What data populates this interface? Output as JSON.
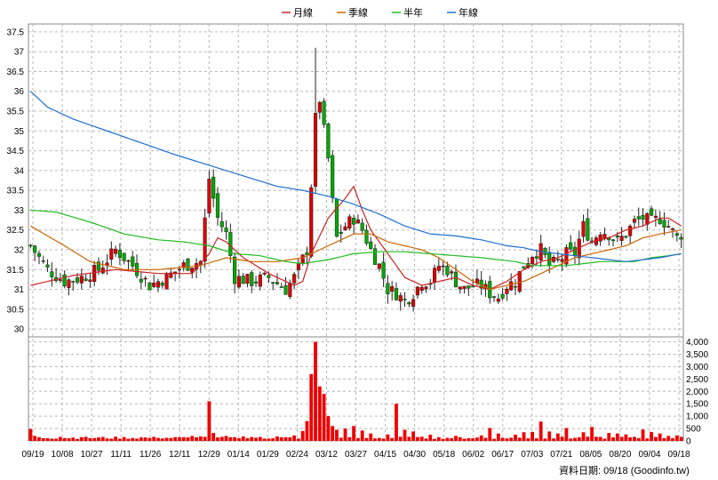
{
  "chart_data": [
    {
      "type": "candlestick",
      "legend": [
        {
          "name": "月線",
          "color": "#cc2222"
        },
        {
          "name": "季線",
          "color": "#cc6600"
        },
        {
          "name": "半年",
          "color": "#22bb22"
        },
        {
          "name": "年線",
          "color": "#1f6fd0"
        }
      ],
      "y_ticks": [
        "30",
        "30.5",
        "31",
        "31.5",
        "32",
        "32.5",
        "33",
        "33.5",
        "34",
        "34.5",
        "35",
        "35.5",
        "36",
        "36.5",
        "37",
        "37.5"
      ],
      "ylim": [
        29.8,
        37.7
      ],
      "x_ticks": [
        "09/19",
        "10/08",
        "10/27",
        "11/11",
        "11/26",
        "12/11",
        "12/29",
        "01/14",
        "01/29",
        "02/24",
        "03/12",
        "03/27",
        "04/15",
        "04/30",
        "05/18",
        "06/02",
        "06/17",
        "07/03",
        "07/21",
        "08/05",
        "08/20",
        "09/04",
        "09/18"
      ],
      "grid": true,
      "up_color": "#dd0000",
      "down_color": "#00aa00",
      "price_anchors": [
        [
          0,
          32.1
        ],
        [
          4,
          31.5
        ],
        [
          8,
          31.2
        ],
        [
          12,
          31.3
        ],
        [
          16,
          31.5
        ],
        [
          20,
          32.0
        ],
        [
          24,
          31.6
        ],
        [
          28,
          31.1
        ],
        [
          32,
          31.3
        ],
        [
          36,
          31.6
        ],
        [
          40,
          31.7
        ],
        [
          42,
          33.8
        ],
        [
          44,
          32.8
        ],
        [
          46,
          32.4
        ],
        [
          48,
          31.3
        ],
        [
          52,
          31.2
        ],
        [
          56,
          31.3
        ],
        [
          60,
          31.0
        ],
        [
          62,
          31.3
        ],
        [
          65,
          32.0
        ],
        [
          67,
          35.3
        ],
        [
          68,
          35.8
        ],
        [
          69,
          35.0
        ],
        [
          70,
          34.3
        ],
        [
          71,
          33.2
        ],
        [
          72,
          32.3
        ],
        [
          74,
          32.6
        ],
        [
          76,
          32.8
        ],
        [
          78,
          32.5
        ],
        [
          80,
          32.0
        ],
        [
          82,
          31.6
        ],
        [
          84,
          31.0
        ],
        [
          86,
          30.9
        ],
        [
          88,
          30.7
        ],
        [
          90,
          30.9
        ],
        [
          92,
          31.2
        ],
        [
          94,
          31.2
        ],
        [
          96,
          31.6
        ],
        [
          98,
          31.5
        ],
        [
          100,
          31.2
        ],
        [
          102,
          31.0
        ],
        [
          104,
          31.1
        ],
        [
          106,
          31.1
        ],
        [
          108,
          30.9
        ],
        [
          110,
          30.8
        ],
        [
          112,
          31.1
        ],
        [
          114,
          31.2
        ],
        [
          116,
          31.6
        ],
        [
          118,
          31.9
        ],
        [
          120,
          32.0
        ],
        [
          122,
          31.6
        ],
        [
          124,
          31.7
        ],
        [
          126,
          31.9
        ],
        [
          128,
          31.9
        ],
        [
          130,
          32.6
        ],
        [
          132,
          32.2
        ],
        [
          134,
          32.5
        ],
        [
          136,
          32.4
        ],
        [
          138,
          32.2
        ],
        [
          140,
          32.4
        ],
        [
          142,
          32.7
        ],
        [
          144,
          32.8
        ],
        [
          146,
          32.7
        ],
        [
          148,
          32.8
        ],
        [
          150,
          32.6
        ],
        [
          152,
          32.3
        ],
        [
          153,
          32.4
        ]
      ],
      "ma_anchors": {
        "月線": [
          [
            0,
            31.1
          ],
          [
            10,
            31.35
          ],
          [
            20,
            31.5
          ],
          [
            30,
            31.4
          ],
          [
            38,
            31.4
          ],
          [
            42,
            31.9
          ],
          [
            44,
            32.3
          ],
          [
            46,
            32.2
          ],
          [
            50,
            31.8
          ],
          [
            56,
            31.4
          ],
          [
            62,
            31.1
          ],
          [
            64,
            31.2
          ],
          [
            66,
            31.9
          ],
          [
            70,
            32.8
          ],
          [
            74,
            33.3
          ],
          [
            76,
            33.6
          ],
          [
            78,
            33.0
          ],
          [
            80,
            32.5
          ],
          [
            84,
            31.9
          ],
          [
            88,
            31.3
          ],
          [
            92,
            31.1
          ],
          [
            96,
            31.2
          ],
          [
            100,
            31.3
          ],
          [
            104,
            31.1
          ],
          [
            108,
            31.0
          ],
          [
            112,
            31.2
          ],
          [
            116,
            31.5
          ],
          [
            120,
            31.7
          ],
          [
            124,
            31.8
          ],
          [
            128,
            32.0
          ],
          [
            132,
            32.2
          ],
          [
            136,
            32.3
          ],
          [
            140,
            32.5
          ],
          [
            144,
            32.6
          ],
          [
            148,
            32.8
          ],
          [
            150,
            32.8
          ],
          [
            153,
            32.6
          ]
        ],
        "季線": [
          [
            0,
            32.6
          ],
          [
            8,
            32.1
          ],
          [
            14,
            31.7
          ],
          [
            22,
            31.5
          ],
          [
            30,
            31.5
          ],
          [
            40,
            31.6
          ],
          [
            46,
            31.8
          ],
          [
            52,
            31.7
          ],
          [
            58,
            31.7
          ],
          [
            64,
            31.8
          ],
          [
            70,
            32.1
          ],
          [
            76,
            32.4
          ],
          [
            80,
            32.4
          ],
          [
            84,
            32.2
          ],
          [
            88,
            32.1
          ],
          [
            92,
            32.0
          ],
          [
            96,
            31.8
          ],
          [
            100,
            31.5
          ],
          [
            104,
            31.2
          ],
          [
            108,
            31.0
          ],
          [
            112,
            31.1
          ],
          [
            116,
            31.2
          ],
          [
            120,
            31.4
          ],
          [
            124,
            31.6
          ],
          [
            128,
            31.8
          ],
          [
            132,
            31.9
          ],
          [
            136,
            32.0
          ],
          [
            140,
            32.1
          ],
          [
            144,
            32.3
          ],
          [
            148,
            32.4
          ],
          [
            153,
            32.5
          ]
        ],
        "半年": [
          [
            0,
            33.0
          ],
          [
            6,
            32.95
          ],
          [
            14,
            32.7
          ],
          [
            22,
            32.4
          ],
          [
            30,
            32.25
          ],
          [
            36,
            32.2
          ],
          [
            42,
            32.1
          ],
          [
            48,
            31.9
          ],
          [
            54,
            31.85
          ],
          [
            60,
            31.7
          ],
          [
            64,
            31.65
          ],
          [
            70,
            31.75
          ],
          [
            76,
            31.9
          ],
          [
            82,
            31.95
          ],
          [
            88,
            31.95
          ],
          [
            94,
            31.9
          ],
          [
            100,
            31.85
          ],
          [
            106,
            31.8
          ],
          [
            110,
            31.75
          ],
          [
            114,
            31.7
          ],
          [
            118,
            31.6
          ],
          [
            122,
            31.6
          ],
          [
            126,
            31.6
          ],
          [
            130,
            31.65
          ],
          [
            134,
            31.7
          ],
          [
            138,
            31.7
          ],
          [
            142,
            31.7
          ],
          [
            146,
            31.8
          ],
          [
            150,
            31.85
          ],
          [
            153,
            31.9
          ]
        ],
        "年線": [
          [
            0,
            36.0
          ],
          [
            4,
            35.6
          ],
          [
            10,
            35.3
          ],
          [
            18,
            35.0
          ],
          [
            26,
            34.7
          ],
          [
            34,
            34.4
          ],
          [
            40,
            34.2
          ],
          [
            46,
            34.0
          ],
          [
            52,
            33.8
          ],
          [
            58,
            33.6
          ],
          [
            64,
            33.5
          ],
          [
            70,
            33.35
          ],
          [
            76,
            33.15
          ],
          [
            82,
            32.9
          ],
          [
            88,
            32.6
          ],
          [
            94,
            32.4
          ],
          [
            100,
            32.35
          ],
          [
            106,
            32.25
          ],
          [
            112,
            32.1
          ],
          [
            116,
            32.05
          ],
          [
            120,
            31.95
          ],
          [
            124,
            31.9
          ],
          [
            128,
            31.85
          ],
          [
            132,
            31.8
          ],
          [
            136,
            31.75
          ],
          [
            140,
            31.7
          ],
          [
            144,
            31.75
          ],
          [
            148,
            31.8
          ],
          [
            153,
            31.9
          ]
        ]
      }
    },
    {
      "type": "bar",
      "y_ticks": [
        "0",
        "500",
        "1,000",
        "1,500",
        "2,000",
        "2,500",
        "3,000",
        "3,500",
        "4,000"
      ],
      "ylim": [
        0,
        4200
      ],
      "bar_color": "#ee0000",
      "baseline": 80,
      "spikes": [
        [
          0,
          480
        ],
        [
          1,
          200
        ],
        [
          7,
          160
        ],
        [
          12,
          150
        ],
        [
          20,
          170
        ],
        [
          26,
          140
        ],
        [
          30,
          120
        ],
        [
          36,
          150
        ],
        [
          38,
          200
        ],
        [
          40,
          180
        ],
        [
          42,
          1600
        ],
        [
          43,
          320
        ],
        [
          46,
          200
        ],
        [
          48,
          150
        ],
        [
          50,
          180
        ],
        [
          54,
          160
        ],
        [
          58,
          180
        ],
        [
          62,
          220
        ],
        [
          64,
          400
        ],
        [
          65,
          800
        ],
        [
          66,
          2700
        ],
        [
          67,
          4000
        ],
        [
          68,
          2200
        ],
        [
          69,
          1900
        ],
        [
          70,
          1000
        ],
        [
          71,
          600
        ],
        [
          72,
          450
        ],
        [
          74,
          500
        ],
        [
          76,
          600
        ],
        [
          78,
          420
        ],
        [
          80,
          300
        ],
        [
          84,
          260
        ],
        [
          86,
          1500
        ],
        [
          88,
          450
        ],
        [
          90,
          380
        ],
        [
          94,
          250
        ],
        [
          100,
          200
        ],
        [
          106,
          220
        ],
        [
          108,
          520
        ],
        [
          110,
          300
        ],
        [
          114,
          250
        ],
        [
          116,
          350
        ],
        [
          118,
          360
        ],
        [
          120,
          780
        ],
        [
          122,
          380
        ],
        [
          124,
          300
        ],
        [
          126,
          520
        ],
        [
          130,
          350
        ],
        [
          132,
          560
        ],
        [
          136,
          320
        ],
        [
          138,
          300
        ],
        [
          140,
          260
        ],
        [
          144,
          460
        ],
        [
          146,
          360
        ],
        [
          148,
          300
        ],
        [
          150,
          200
        ],
        [
          152,
          220
        ]
      ]
    }
  ],
  "footer": {
    "date_label": "資料日期: 09/18",
    "source": "(Goodinfo.tw)"
  }
}
